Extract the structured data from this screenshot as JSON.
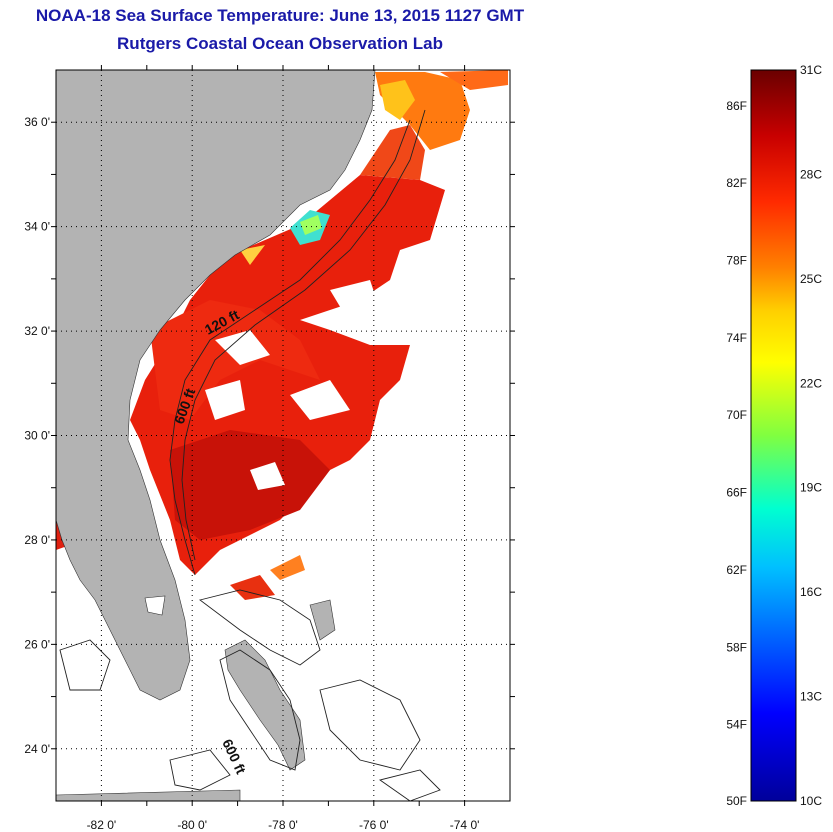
{
  "title": "NOAA-18 Sea Surface Temperature:  June 13, 2015 1127 GMT",
  "subtitle": "Rutgers Coastal Ocean Observation Lab",
  "map": {
    "lon_range": [
      -83,
      -73
    ],
    "lat_range": [
      23,
      37
    ],
    "lon_ticks": [
      "-82 0'",
      "-80 0'",
      "-78 0'",
      "-76 0'",
      "-74 0'"
    ],
    "lat_ticks": [
      "36 0'",
      "34 0'",
      "32 0'",
      "30 0'",
      "28 0'",
      "26 0'",
      "24 0'"
    ],
    "grid": "dotted",
    "land_color": "#b3b3b3",
    "no_data_color": "#ffffff",
    "contour_labels": [
      "120 ft",
      "600 ft",
      "600 ft"
    ]
  },
  "colorbar": {
    "min_c": 10,
    "max_c": 31,
    "fahrenheit_labels": [
      "86F",
      "82F",
      "78F",
      "74F",
      "70F",
      "66F",
      "62F",
      "58F",
      "54F",
      "50F"
    ],
    "celsius_labels": [
      "31C",
      "28C",
      "25C",
      "22C",
      "19C",
      "16C",
      "13C",
      "10C"
    ],
    "colors": [
      "#6a0000",
      "#c80000",
      "#ff2a00",
      "#ff8000",
      "#ffd000",
      "#ffff00",
      "#80ff40",
      "#00ffd0",
      "#00c0ff",
      "#0060ff",
      "#0000ff",
      "#00009a"
    ]
  }
}
